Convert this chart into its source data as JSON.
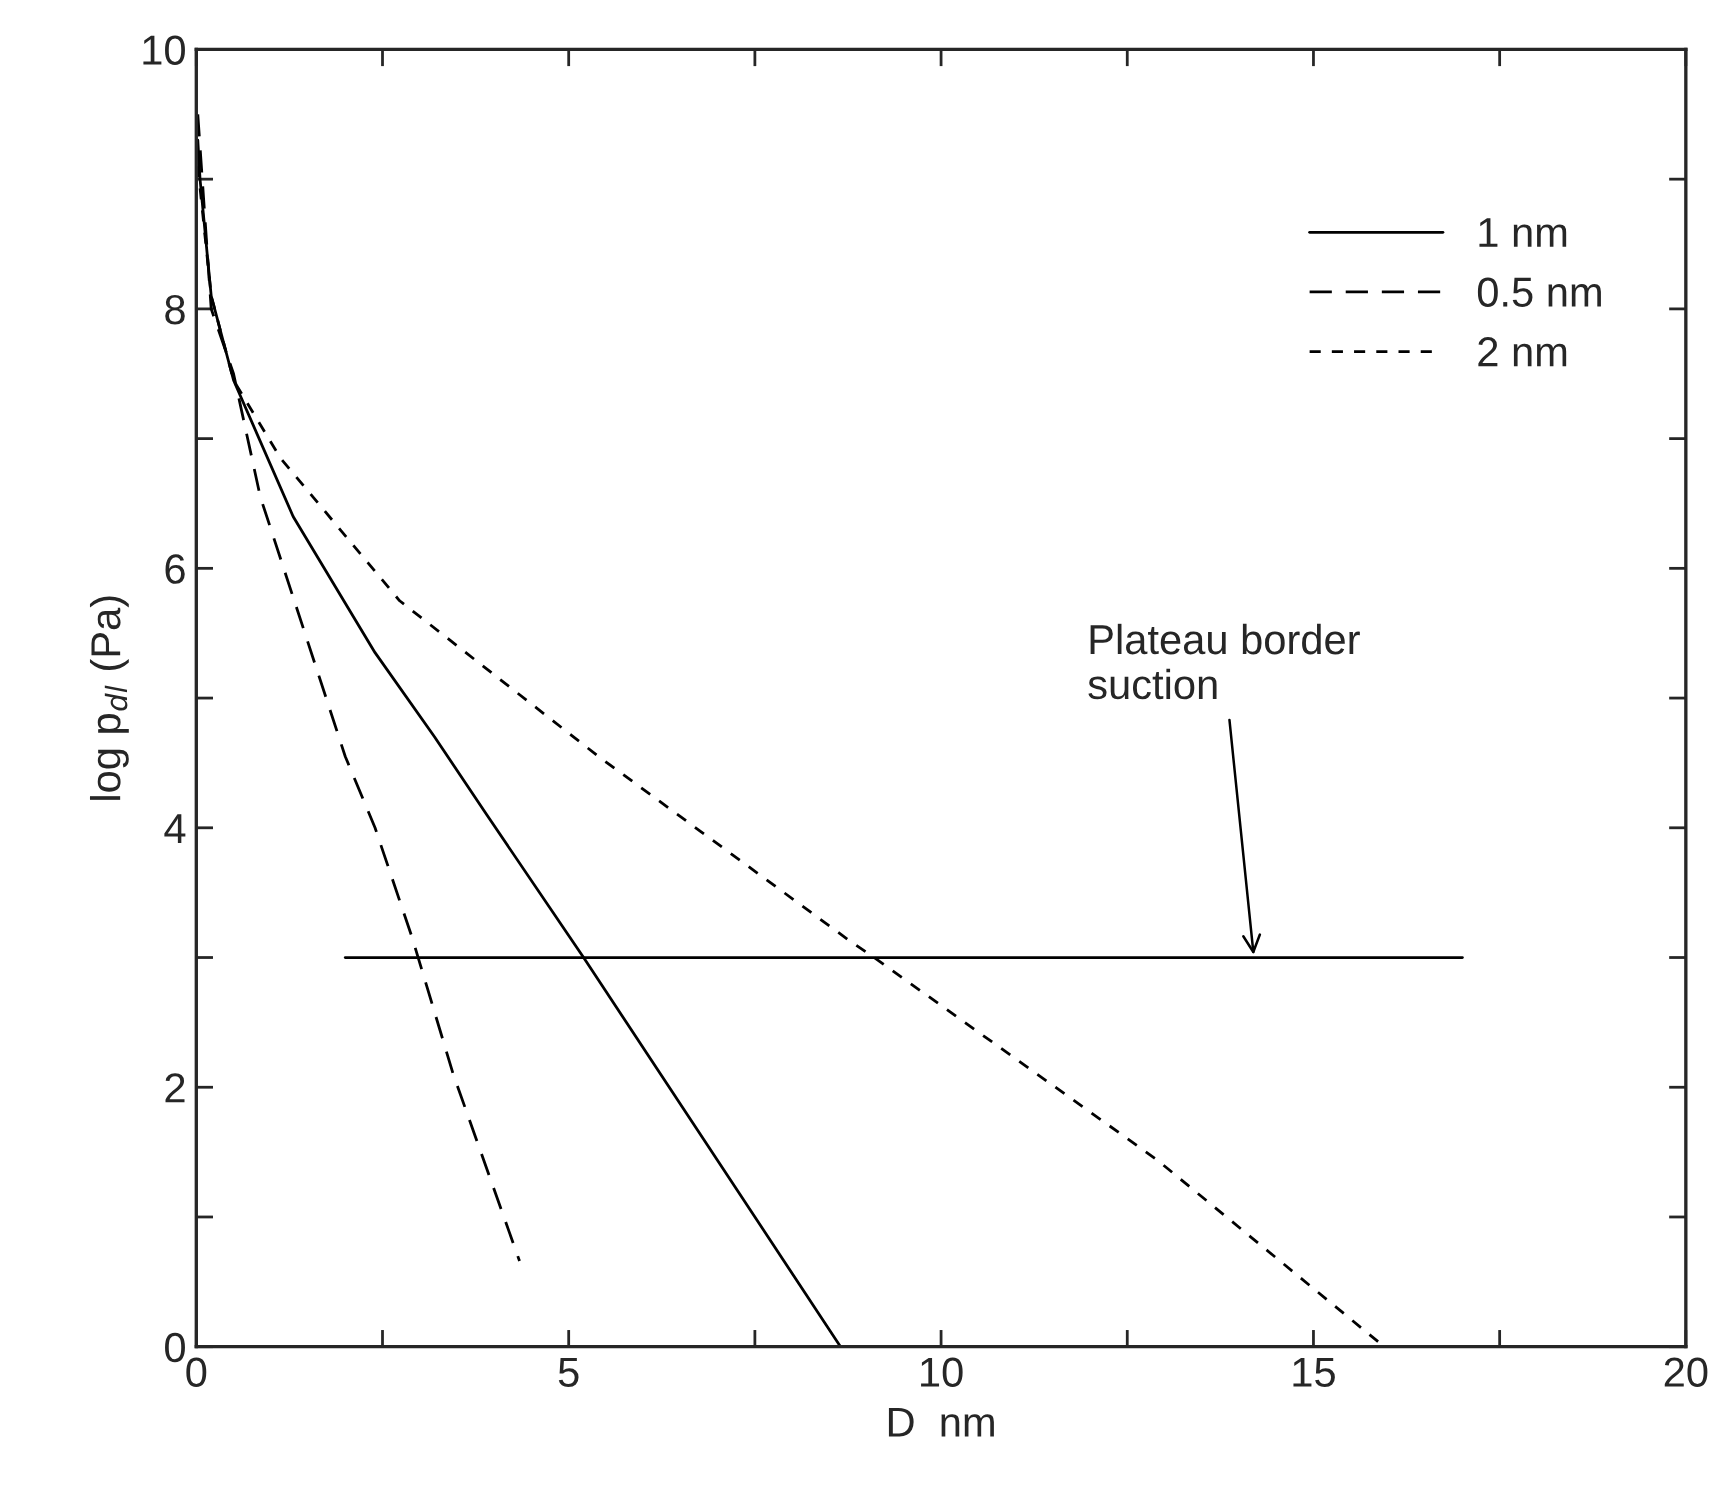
{
  "chart_data": {
    "type": "line",
    "xlabel": "D  nm",
    "ylabel": "log p$_{dl}$ (Pa)",
    "xlim": [
      0,
      20
    ],
    "ylim": [
      0,
      10
    ],
    "xticks": [
      0,
      {
        "value": 2.5,
        "label": null
      },
      5,
      {
        "value": 7.5,
        "label": null
      },
      10,
      {
        "value": 12.5,
        "label": null
      },
      15,
      {
        "value": 17.5,
        "label": null
      },
      20
    ],
    "yticks": [
      0,
      {
        "value": 1,
        "label": null
      },
      2,
      {
        "value": 3,
        "label": null
      },
      4,
      {
        "value": 5,
        "label": null
      },
      6,
      {
        "value": 7,
        "label": null
      },
      8,
      {
        "value": 9,
        "label": null
      },
      10
    ],
    "grid": false,
    "legend": "top right",
    "marker": "none",
    "series": [
      {
        "name": "1 nm",
        "color": "#000000",
        "line_style": "solid",
        "x": [
          0.02,
          0.05,
          0.2,
          0.5,
          1.3,
          2.4,
          3.2,
          3.9,
          5.2,
          8.65
        ],
        "values": [
          9.3,
          9.0,
          8.1,
          7.45,
          6.4,
          5.35,
          4.7,
          4.1,
          3.0,
          0
        ]
      },
      {
        "name": "0.5 nm",
        "color": "#000000",
        "line_style": "dashed",
        "x": [
          0.02,
          0.2,
          0.5,
          0.86,
          2.0,
          2.4,
          2.9,
          3.45,
          4.34
        ],
        "values": [
          9.5,
          8.0,
          7.5,
          6.55,
          4.55,
          4.0,
          3.15,
          2.1,
          0.66
        ]
      },
      {
        "name": "2 nm",
        "color": "#000000",
        "line_style": "dotted",
        "x": [
          0.02,
          0.2,
          0.5,
          1.13,
          2.73,
          5.4,
          8.77,
          9.1,
          12.9,
          15.95
        ],
        "values": [
          9.1,
          8.1,
          7.45,
          6.85,
          5.75,
          4.55,
          3.13,
          3.0,
          1.44,
          0
        ]
      },
      {
        "color": "#000000",
        "line_style": "solid",
        "x": [
          2,
          17
        ],
        "values": [
          3,
          3
        ]
      }
    ],
    "annotations": [
      {
        "text": "Plateau border\nsuction",
        "x": 14.2,
        "y": 3
      }
    ]
  }
}
